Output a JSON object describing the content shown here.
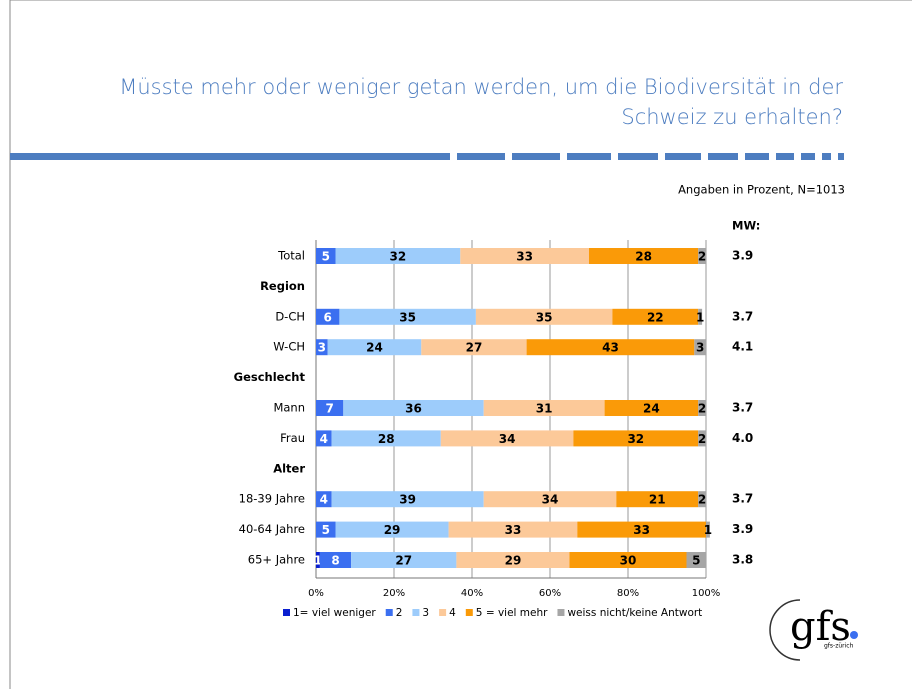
{
  "chart_data": {
    "type": "stacked_barh",
    "title_lines": [
      "Müsste mehr oder weniger getan werden, um die Biodiversität in der",
      "Schweiz zu erhalten?"
    ],
    "subtitle": "Angaben in Prozent, N=1013",
    "categories": [
      "Total",
      "Region",
      "D-CH",
      "W-CH",
      "Geschlecht",
      "Mann",
      "Frau",
      "Alter",
      "18-39 Jahre",
      "40-64 Jahre",
      "65+ Jahre"
    ],
    "series": [
      {
        "name": "1= viel weniger",
        "color": "#0a1fd0",
        "values": [
          0,
          null,
          0,
          0,
          null,
          0,
          0,
          null,
          0,
          0,
          1
        ]
      },
      {
        "name": "2",
        "color": "#3b6ff0",
        "values": [
          5,
          null,
          6,
          3,
          null,
          7,
          4,
          null,
          4,
          5,
          8
        ]
      },
      {
        "name": "3",
        "color": "#9dccfb",
        "values": [
          32,
          null,
          35,
          24,
          null,
          36,
          28,
          null,
          39,
          29,
          27
        ]
      },
      {
        "name": "4",
        "color": "#fcc999",
        "values": [
          33,
          null,
          35,
          27,
          null,
          31,
          34,
          null,
          34,
          33,
          29
        ]
      },
      {
        "name": "5 = viel mehr",
        "color": "#fa9a08",
        "values": [
          28,
          null,
          22,
          43,
          null,
          24,
          32,
          null,
          21,
          33,
          30
        ]
      },
      {
        "name": "weiss nicht/keine Antwort",
        "color": "#a6a6a6",
        "values": [
          2,
          null,
          1,
          3,
          null,
          2,
          2,
          null,
          2,
          1,
          5
        ]
      }
    ],
    "mean_label": "MW:",
    "mean_values": [
      3.9,
      null,
      3.7,
      4.1,
      null,
      3.7,
      4.0,
      null,
      3.7,
      3.9,
      3.8
    ],
    "mean_value_labels": [
      "3.9",
      null,
      "3.7",
      "4.1",
      null,
      "3.7",
      "4.0",
      null,
      "3.7",
      "3.9",
      "3.8"
    ],
    "xlim": [
      0,
      100
    ],
    "xticks": [
      {
        "value": 0,
        "label": "0%"
      },
      {
        "value": 20,
        "label": "20%"
      },
      {
        "value": 40,
        "label": "40%"
      },
      {
        "value": 60,
        "label": "60%"
      },
      {
        "value": 80,
        "label": "80%"
      },
      {
        "value": 100,
        "label": "100%"
      }
    ],
    "grid": true,
    "legend": "bottom",
    "logo": {
      "text": "gfs",
      "subtext": "gfs-zürich"
    }
  }
}
